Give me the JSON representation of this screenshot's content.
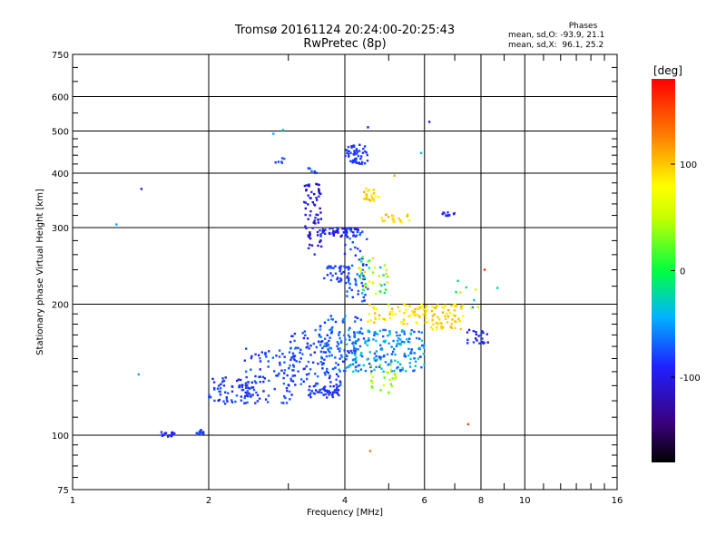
{
  "chart_data": {
    "type": "scatter",
    "title": "Tromsø 20161124 20:24:00-20:25:43",
    "subtitle": "RwPretec (8p)",
    "xlabel": "Frequency [MHz]",
    "ylabel": "Stationary phase Virtual Height [km]",
    "x_scale": "log",
    "y_scale": "log",
    "xlim": [
      1,
      16
    ],
    "ylim": [
      75,
      750
    ],
    "x_ticks": [
      1,
      2,
      4,
      6,
      8,
      10,
      16
    ],
    "y_ticks": [
      75,
      100,
      200,
      300,
      400,
      500,
      600,
      750
    ],
    "grid": true,
    "stats": {
      "title": "Phases",
      "line_o": "mean, sd,O: -93.9, 21.1",
      "line_x": "mean, sd,X:  96.1, 25.2"
    },
    "colorbar": {
      "label": "[deg]",
      "range": [
        -180,
        180
      ],
      "ticks": [
        100,
        0,
        -100
      ]
    },
    "clusters": [
      {
        "x": [
          1.55,
          1.68
        ],
        "y": [
          99,
          102
        ],
        "n": 18,
        "phase": [
          -120,
          -95
        ]
      },
      {
        "x": [
          1.88,
          1.95
        ],
        "y": [
          100,
          104
        ],
        "n": 10,
        "phase": [
          -110,
          -80
        ]
      },
      {
        "x": [
          2.0,
          2.55
        ],
        "y": [
          118,
          136
        ],
        "n": 70,
        "phase": [
          -120,
          -80
        ]
      },
      {
        "x": [
          2.4,
          3.1
        ],
        "y": [
          118,
          160
        ],
        "n": 90,
        "phase": [
          -115,
          -70
        ]
      },
      {
        "x": [
          3.0,
          4.0
        ],
        "y": [
          130,
          175
        ],
        "n": 110,
        "phase": [
          -115,
          -70
        ]
      },
      {
        "x": [
          3.3,
          3.9
        ],
        "y": [
          122,
          130
        ],
        "n": 50,
        "phase": [
          -120,
          -85
        ]
      },
      {
        "x": [
          3.5,
          4.4
        ],
        "y": [
          140,
          190
        ],
        "n": 80,
        "phase": [
          -110,
          -50
        ]
      },
      {
        "x": [
          4.0,
          6.0
        ],
        "y": [
          140,
          175
        ],
        "n": 190,
        "phase": [
          -100,
          -20
        ]
      },
      {
        "x": [
          4.5,
          6.3
        ],
        "y": [
          180,
          200
        ],
        "n": 70,
        "phase": [
          70,
          110
        ]
      },
      {
        "x": [
          6.2,
          7.3
        ],
        "y": [
          175,
          200
        ],
        "n": 60,
        "phase": [
          80,
          110
        ]
      },
      {
        "x": [
          7.4,
          8.3
        ],
        "y": [
          162,
          175
        ],
        "n": 25,
        "phase": [
          -130,
          -90
        ]
      },
      {
        "x": [
          3.25,
          3.55
        ],
        "y": [
          260,
          380
        ],
        "n": 70,
        "phase": [
          -140,
          -100
        ]
      },
      {
        "x": [
          3.5,
          4.3
        ],
        "y": [
          285,
          300
        ],
        "n": 50,
        "phase": [
          -130,
          -95
        ]
      },
      {
        "x": [
          3.6,
          4.1
        ],
        "y": [
          225,
          245
        ],
        "n": 40,
        "phase": [
          -110,
          -85
        ]
      },
      {
        "x": [
          4.0,
          4.5
        ],
        "y": [
          420,
          465
        ],
        "n": 50,
        "phase": [
          -110,
          -90
        ]
      },
      {
        "x": [
          4.0,
          4.5
        ],
        "y": [
          200,
          300
        ],
        "n": 60,
        "phase": [
          -110,
          -70
        ]
      },
      {
        "x": [
          4.4,
          4.8
        ],
        "y": [
          345,
          370
        ],
        "n": 25,
        "phase": [
          80,
          110
        ]
      },
      {
        "x": [
          4.8,
          5.6
        ],
        "y": [
          305,
          322
        ],
        "n": 20,
        "phase": [
          80,
          110
        ]
      },
      {
        "x": [
          4.3,
          5.0
        ],
        "y": [
          210,
          260
        ],
        "n": 40,
        "phase": [
          -60,
          100
        ]
      },
      {
        "x": [
          4.5,
          5.2
        ],
        "y": [
          125,
          145
        ],
        "n": 25,
        "phase": [
          20,
          60
        ]
      },
      {
        "x": [
          6.5,
          7.0
        ],
        "y": [
          318,
          325
        ],
        "n": 12,
        "phase": [
          -120,
          -100
        ]
      },
      {
        "x": [
          2.8,
          2.95
        ],
        "y": [
          420,
          440
        ],
        "n": 6,
        "phase": [
          -100,
          -80
        ]
      },
      {
        "x": [
          3.3,
          3.5
        ],
        "y": [
          395,
          412
        ],
        "n": 8,
        "phase": [
          -100,
          -80
        ]
      },
      {
        "x": [
          7.0,
          8.0
        ],
        "y": [
          195,
          230
        ],
        "n": 10,
        "phase": [
          -80,
          80
        ]
      }
    ],
    "isolated_points": [
      {
        "x": 1.25,
        "y": 305,
        "phase": -50
      },
      {
        "x": 1.42,
        "y": 368,
        "phase": -120
      },
      {
        "x": 1.4,
        "y": 138,
        "phase": -50
      },
      {
        "x": 2.78,
        "y": 493,
        "phase": -50
      },
      {
        "x": 2.92,
        "y": 503,
        "phase": -30
      },
      {
        "x": 4.5,
        "y": 510,
        "phase": -120
      },
      {
        "x": 6.15,
        "y": 525,
        "phase": -120
      },
      {
        "x": 4.55,
        "y": 92,
        "phase": 130
      },
      {
        "x": 7.5,
        "y": 106,
        "phase": 150
      },
      {
        "x": 8.7,
        "y": 218,
        "phase": -30
      },
      {
        "x": 8.15,
        "y": 240,
        "phase": 160
      },
      {
        "x": 5.15,
        "y": 395,
        "phase": 110
      },
      {
        "x": 5.9,
        "y": 445,
        "phase": -40
      }
    ]
  }
}
